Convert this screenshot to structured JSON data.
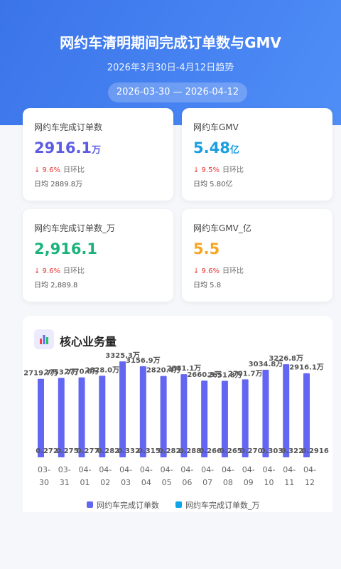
{
  "header": {
    "title": "网约车清明期间完成订单数与GMV",
    "subtitle": "2026年3月30日-4月12日趋势",
    "date_range": "2026-03-30 — 2026-04-12"
  },
  "cards": [
    {
      "label": "网约车完成订单数",
      "value": "2916.1",
      "unit": "万",
      "change": "↓ 9.6%",
      "change_label": "日环比",
      "average": "日均 2889.8万"
    },
    {
      "label": "网约车GMV",
      "value": "5.48",
      "unit": "亿",
      "change": "↓ 9.5%",
      "change_label": "日环比",
      "average": "日均 5.80亿"
    },
    {
      "label": "网约车完成订单数_万",
      "value": "2,916.1",
      "change": "↓ 9.6%",
      "change_label": "日环比",
      "average": "日均 2,889.8"
    },
    {
      "label": "网约车GMV_亿",
      "value": "5.5",
      "change": "↓ 9.6%",
      "change_label": "日环比",
      "average": "日均 5.8"
    }
  ],
  "section_title": "核心业务量",
  "chart_data": {
    "type": "bar",
    "categories": [
      "03-30",
      "03-31",
      "04-01",
      "04-02",
      "04-03",
      "04-04",
      "04-05",
      "04-06",
      "04-07",
      "04-08",
      "04-09",
      "04-10",
      "04-11",
      "04-12"
    ],
    "series": [
      {
        "name": "网约车完成订单数",
        "color": "#6366f1",
        "values": [
          2719.7,
          2753.7,
          2770.6,
          2828.0,
          3325.3,
          3156.9,
          2820.4,
          2881.1,
          2660.3,
          2651.8,
          2701.7,
          3034.8,
          3226.8,
          2916.1
        ],
        "value_labels": [
          "2719.7万",
          "2753.7万",
          "2770.6万",
          "2828.0万",
          "3325.3万",
          "3156.9万",
          "2820.4万",
          "2881.1万",
          "2660.3万",
          "2651.8万",
          "2701.7万",
          "3034.8万",
          "3226.8万",
          "2916.1万"
        ]
      },
      {
        "name": "网约车完成订单数_万",
        "color": "#0ea5e9",
        "values": [
          0.272,
          0.2753,
          0.2771,
          0.2828,
          0.3325,
          0.3157,
          0.282,
          0.2881,
          0.266,
          0.2652,
          0.2702,
          0.3035,
          0.3227,
          0.2916
        ],
        "value_labels": [
          "0.2720",
          "0.2753",
          "0.2771",
          "0.2828",
          "0.3325",
          "0.3157",
          "0.2820",
          "0.2881",
          "0.2660",
          "0.2652",
          "0.2702",
          "0.3035",
          "0.3227",
          "0.2916"
        ]
      }
    ],
    "ylim": [
      0,
      3500
    ]
  }
}
